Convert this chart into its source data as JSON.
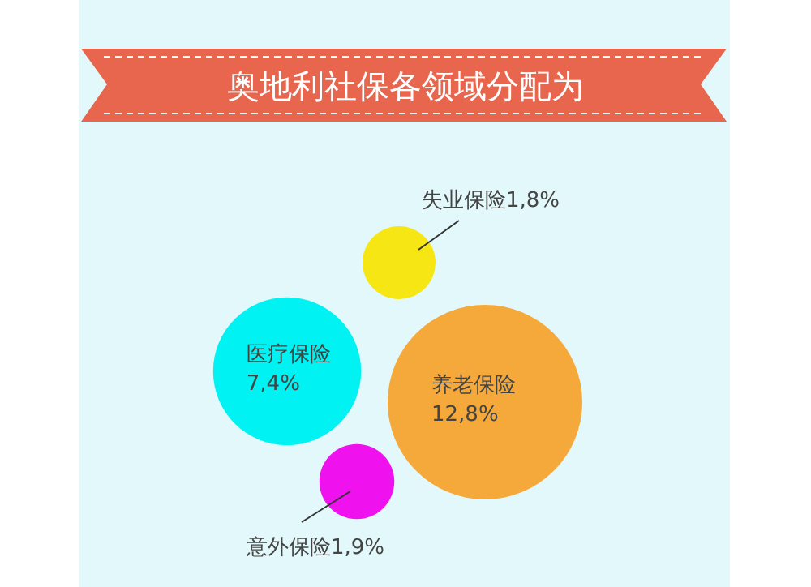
{
  "chart_data": {
    "type": "other",
    "title": "奥地利社保各领域分配为",
    "categories": [
      "失业保险",
      "医疗保险",
      "养老保险",
      "意外保险"
    ],
    "values": [
      1.8,
      7.4,
      12.8,
      1.9
    ],
    "value_labels": [
      "1,8%",
      "7,4%",
      "12,8%",
      "1,9%"
    ],
    "colors": [
      "#f5e614",
      "#00f2f2",
      "#f6a93b",
      "#f012ee"
    ]
  }
}
